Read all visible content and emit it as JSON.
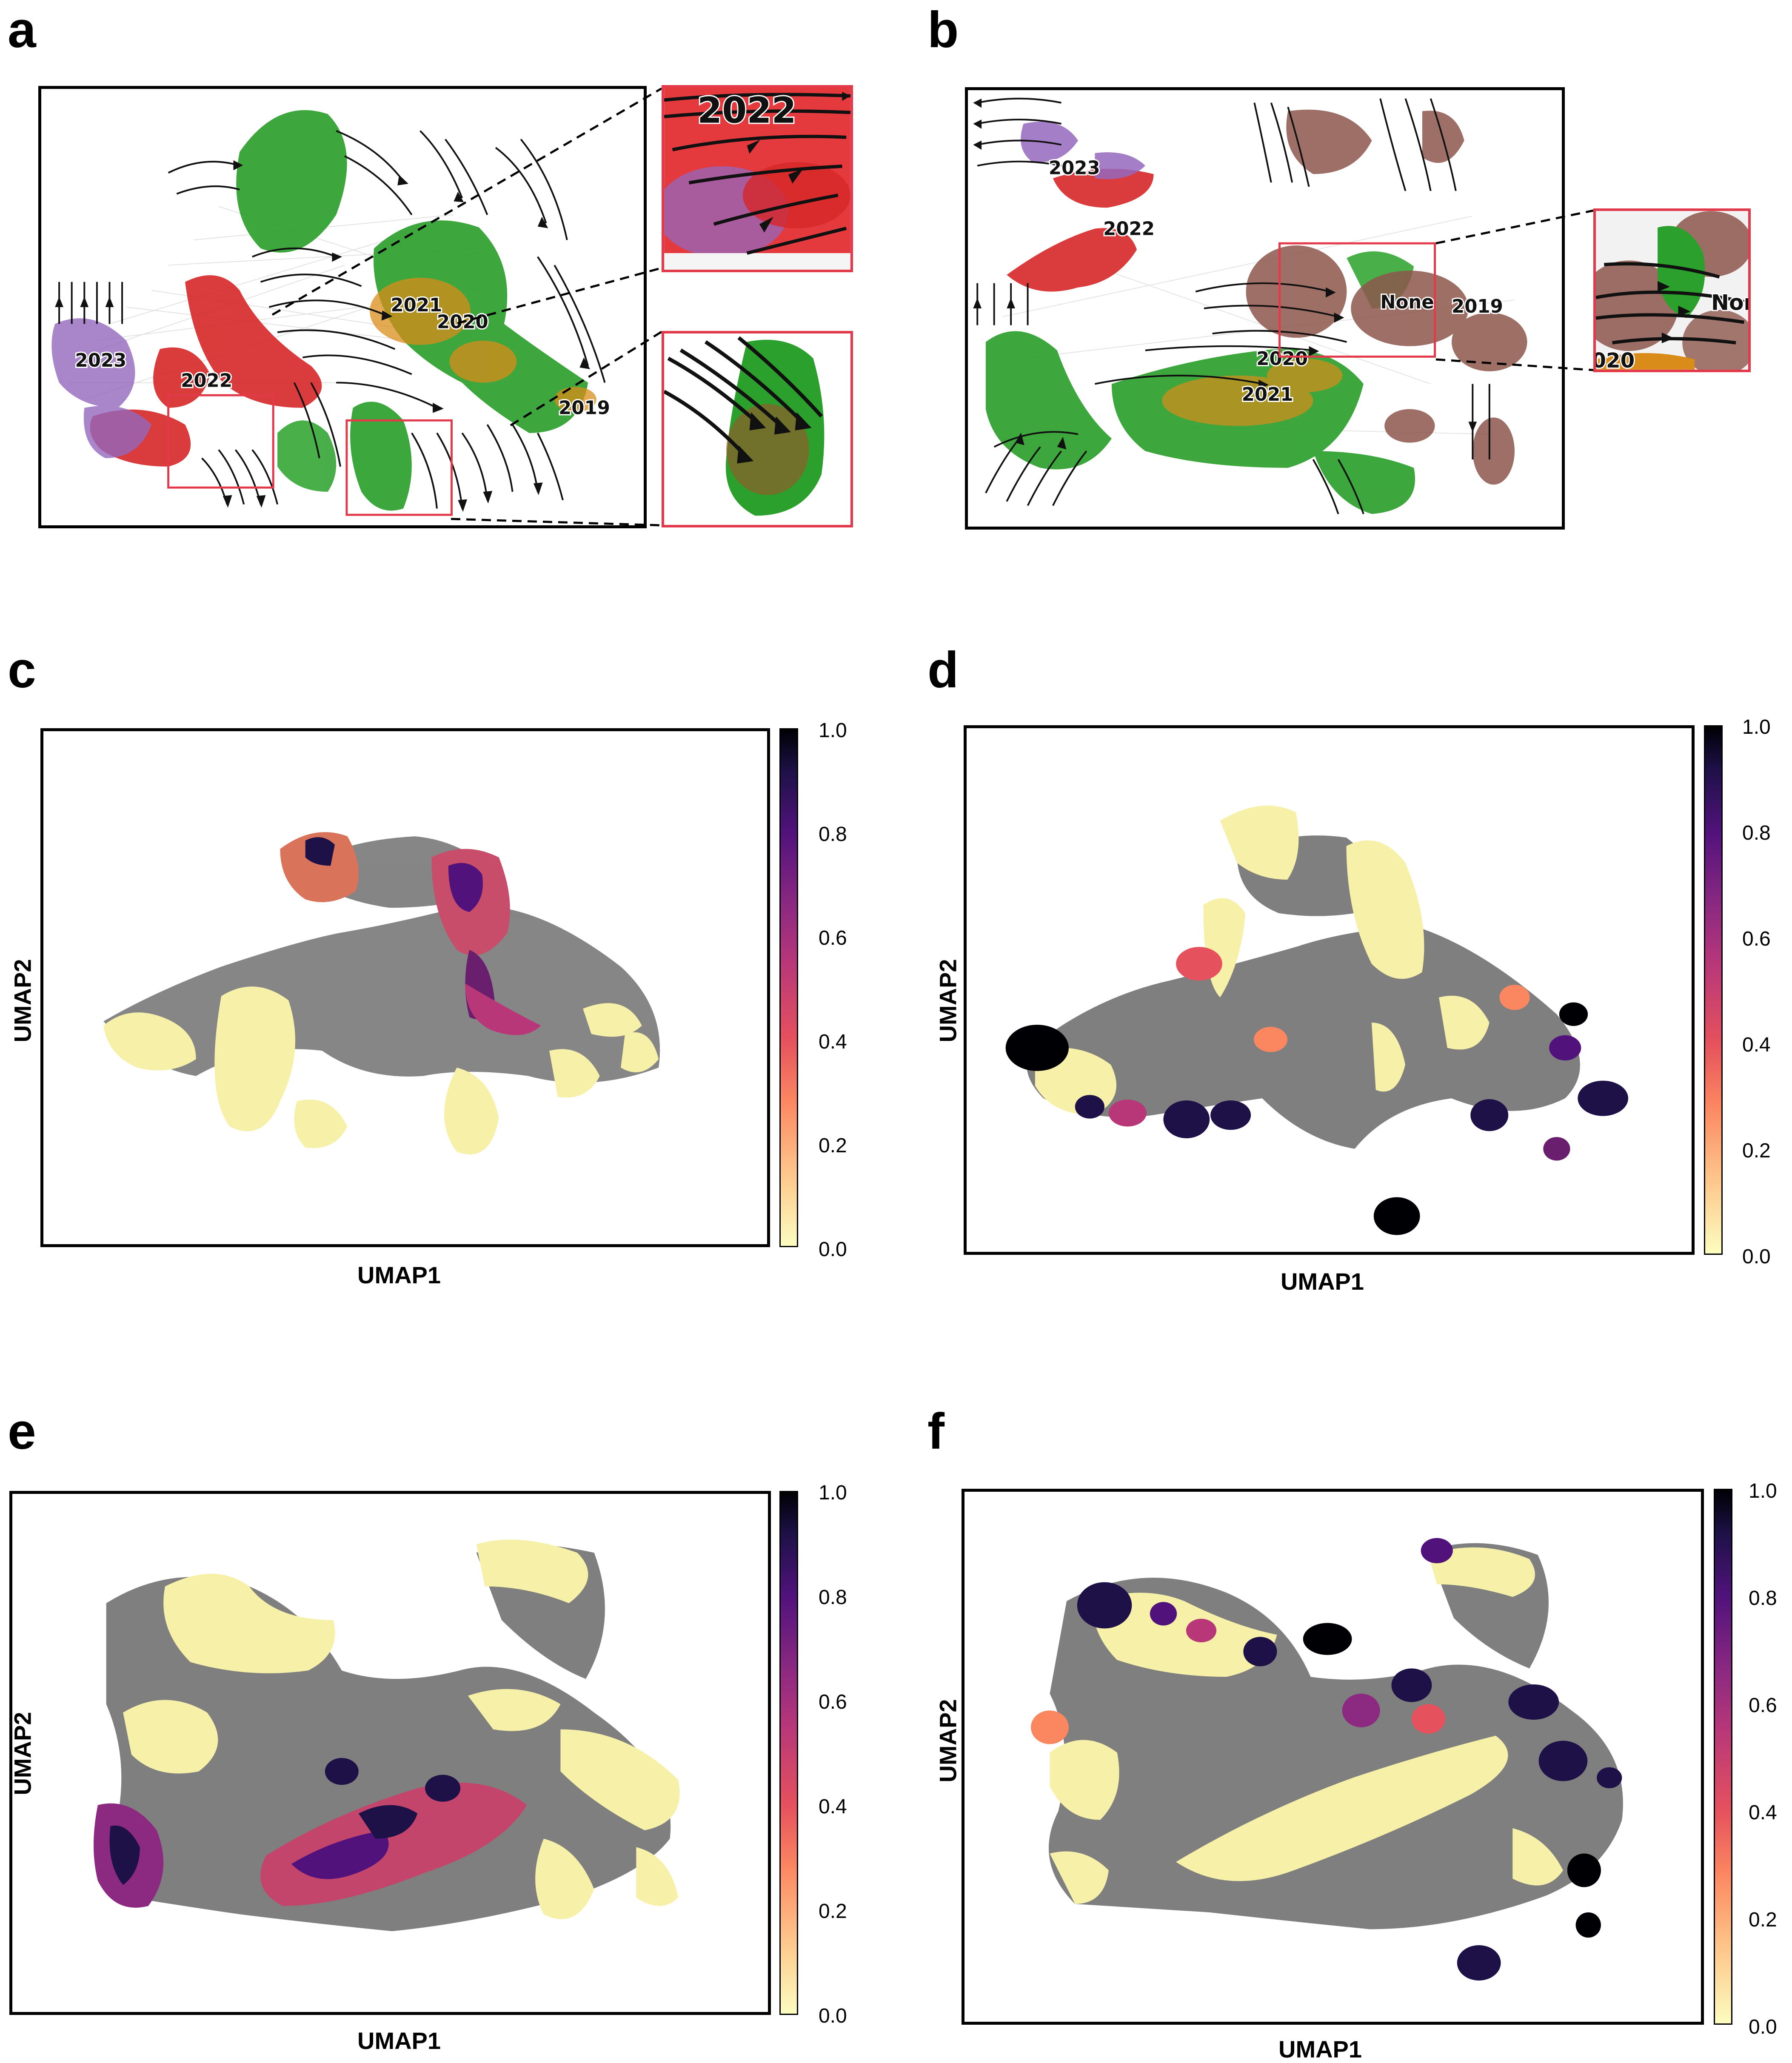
{
  "panels": {
    "a": {
      "letter": "a",
      "labels": [
        "2023",
        "2022",
        "2021",
        "2020",
        "2019"
      ],
      "inset_labels": [
        "2022"
      ]
    },
    "b": {
      "letter": "b",
      "labels": [
        "2023",
        "2022",
        "None",
        "2019",
        "2020",
        "2021"
      ],
      "inset_labels": [
        "None",
        "020"
      ]
    },
    "c": {
      "letter": "c",
      "xlabel": "UMAP1",
      "ylabel": "UMAP2"
    },
    "d": {
      "letter": "d",
      "xlabel": "UMAP1",
      "ylabel": "UMAP2"
    },
    "e": {
      "letter": "e",
      "xlabel": "UMAP1",
      "ylabel": "UMAP2"
    },
    "f": {
      "letter": "f",
      "xlabel": "UMAP1",
      "ylabel": "UMAP2"
    }
  },
  "colorbar": {
    "ticks": [
      "1.0",
      "0.8",
      "0.6",
      "0.4",
      "0.2",
      "0.0"
    ],
    "colormap": "magma_r"
  },
  "colors": {
    "green": "#2ca02c",
    "red": "#d62728",
    "purple": "#9467bd",
    "orange": "#d98c1a",
    "brown": "#8c564b",
    "inset_border": "#e23a4a"
  }
}
